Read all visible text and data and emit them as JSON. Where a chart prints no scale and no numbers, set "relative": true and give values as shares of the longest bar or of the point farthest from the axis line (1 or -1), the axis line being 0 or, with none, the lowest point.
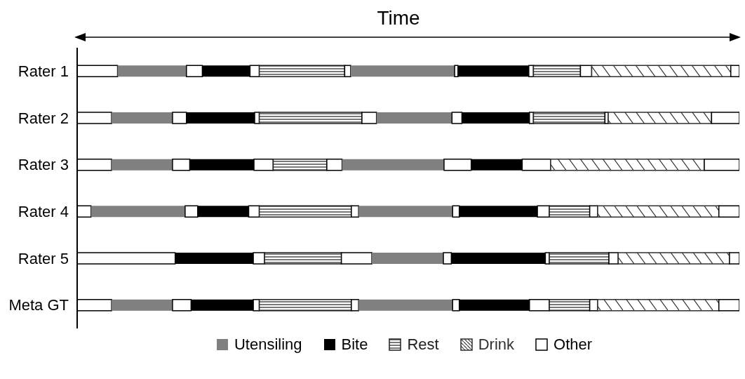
{
  "chart_data": {
    "type": "bar",
    "orientation": "horizontal",
    "stacked": true,
    "relative": true,
    "xlabel": "Time",
    "legend": "bottom",
    "categories": [
      "Rater 1",
      "Rater 2",
      "Rater 3",
      "Rater 4",
      "Rater 5",
      "Meta GT"
    ],
    "series": [
      {
        "color": "#ffffff",
        "values": [
          0.061,
          0.052,
          0.052,
          0.021,
          0.148,
          0.052
        ]
      },
      {
        "name": "Utensiling",
        "color": "#808080",
        "values": [
          0.104,
          0.092,
          0.092,
          0.142,
          null,
          0.092
        ]
      },
      {
        "color": "#ffffff",
        "values": [
          0.024,
          0.021,
          0.026,
          0.019,
          null,
          0.028
        ]
      },
      {
        "name": "Bite",
        "color": "#000000",
        "values": [
          0.072,
          0.103,
          0.097,
          0.077,
          0.118,
          0.094
        ]
      },
      {
        "color": "#ffffff",
        "values": [
          0.014,
          0.007,
          0.029,
          0.016,
          0.017,
          0.009
        ]
      },
      {
        "name": "Rest",
        "color": "#202020",
        "values": [
          0.129,
          0.155,
          0.081,
          0.139,
          0.116,
          0.139
        ]
      },
      {
        "color": "#ffffff",
        "values": [
          0.009,
          0.022,
          0.023,
          0.011,
          0.046,
          0.011
        ]
      },
      {
        "color": "#808080",
        "values": [
          0.157,
          0.114,
          0.154,
          0.142,
          0.108,
          0.142
        ]
      },
      {
        "color": "#ffffff",
        "values": [
          0.005,
          0.015,
          0.041,
          0.01,
          0.012,
          0.01
        ]
      },
      {
        "color": "#000000",
        "values": [
          0.107,
          0.102,
          0.077,
          0.118,
          0.142,
          0.106
        ]
      },
      {
        "color": "#ffffff",
        "values": [
          0.007,
          0.006,
          0.043,
          0.018,
          0.006,
          0.03
        ]
      },
      {
        "color": "#202020",
        "values": [
          0.071,
          0.108,
          null,
          0.061,
          0.09,
          0.061
        ]
      },
      {
        "color": "#ffffff",
        "values": [
          0.017,
          0.005,
          null,
          0.012,
          0.014,
          0.012
        ]
      },
      {
        "name": "Drink",
        "color": "#303030",
        "values": [
          0.21,
          0.156,
          0.232,
          0.183,
          0.168,
          0.183
        ]
      },
      {
        "name": "Other",
        "color": "#ffffff",
        "values": [
          0.013,
          0.042,
          0.053,
          0.031,
          0.015,
          0.031
        ]
      }
    ]
  }
}
